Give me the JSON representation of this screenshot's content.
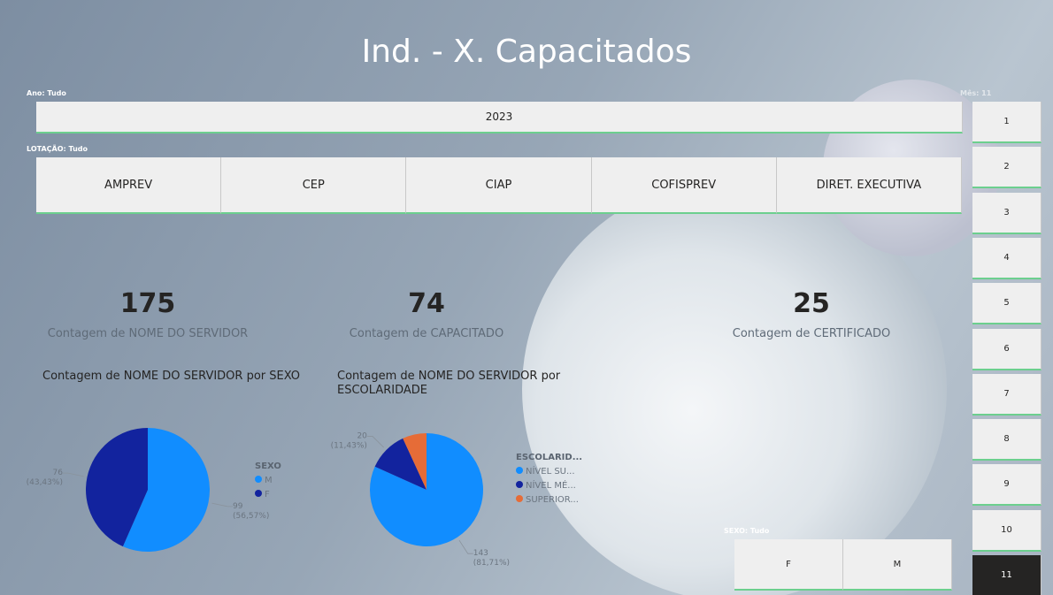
{
  "title": "Ind. - X. Capacitados",
  "year_slicer": {
    "label": "Ano: Tudo",
    "options": [
      "2023"
    ]
  },
  "lotacao_slicer": {
    "label": "LOTAÇÃO: Tudo",
    "options": [
      "AMPREV",
      "CEP",
      "CIAP",
      "COFISPREV",
      "DIRET. EXECUTIVA"
    ]
  },
  "month_slicer": {
    "label": "Mês: 11",
    "options": [
      "1",
      "2",
      "3",
      "4",
      "5",
      "6",
      "7",
      "8",
      "9",
      "10",
      "11"
    ],
    "selected": "11"
  },
  "kpis": [
    {
      "value": 175,
      "label": "Contagem de NOME DO SERVIDOR"
    },
    {
      "value": 74,
      "label": "Contagem de CAPACITADO"
    },
    {
      "value": 25,
      "label": "Contagem de CERTIFICADO"
    }
  ],
  "sexo_slicer": {
    "label": "SEXO: Tudo",
    "options": [
      "F",
      "M"
    ]
  },
  "chart_data": [
    {
      "type": "pie",
      "title": "Contagem de NOME DO SERVIDOR por SEXO",
      "legend_title": "SEXO",
      "categories": [
        "M",
        "F"
      ],
      "values": [
        99,
        76
      ],
      "colors": [
        "#118dff",
        "#12239e"
      ],
      "percent_labels": [
        "(56,57%)",
        "(43,43%)"
      ]
    },
    {
      "type": "pie",
      "title": "Contagem de NOME DO SERVIDOR por ESCOLARIDADE",
      "legend_title": "ESCOLARID...",
      "categories": [
        "NÍVEL SU...",
        "NÍVEL MÉ...",
        "SUPERIOR..."
      ],
      "values": [
        143,
        20,
        12
      ],
      "colors": [
        "#118dff",
        "#12239e",
        "#e66c37"
      ],
      "percent_labels": [
        "(81,71%)",
        "(11,43%)",
        null
      ]
    }
  ]
}
